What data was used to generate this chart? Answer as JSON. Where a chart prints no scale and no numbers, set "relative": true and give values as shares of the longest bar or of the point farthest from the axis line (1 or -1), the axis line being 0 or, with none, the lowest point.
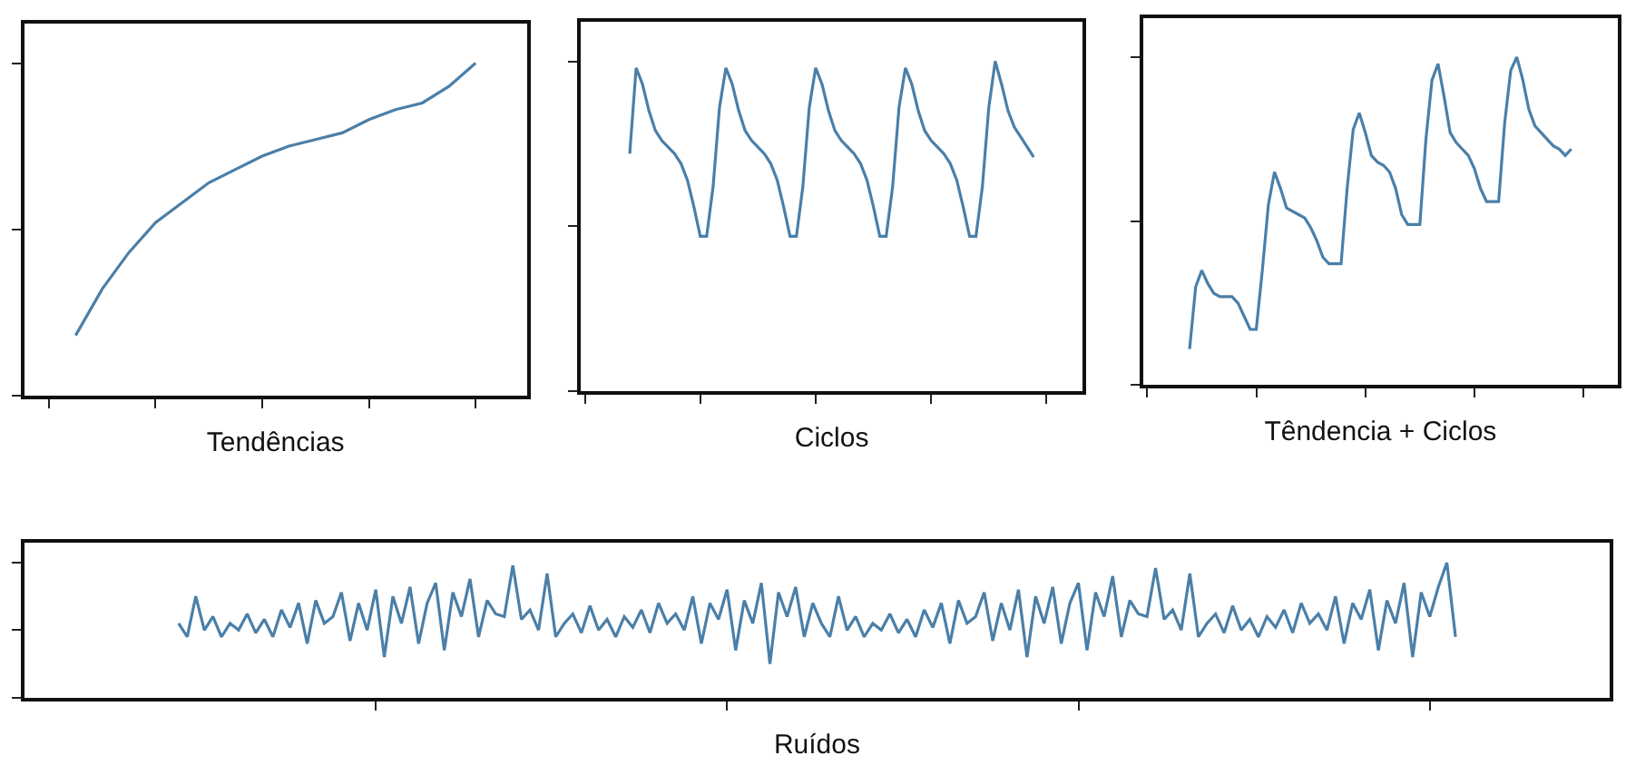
{
  "chart_data": [
    {
      "type": "line",
      "xlabel": "Tendências",
      "relative": true,
      "tick_labels": false,
      "categories": [
        null,
        null,
        null,
        null,
        null,
        null,
        null,
        null,
        null,
        null,
        null,
        null,
        null,
        null,
        null,
        null
      ],
      "series": [
        {
          "color": "#4a7fa8",
          "values": [
            0.18,
            0.32,
            0.43,
            0.52,
            0.58,
            0.64,
            0.68,
            0.72,
            0.75,
            0.77,
            0.79,
            0.83,
            0.86,
            0.88,
            0.93,
            1.0
          ]
        }
      ]
    },
    {
      "type": "line",
      "xlabel": "Ciclos",
      "relative": true,
      "tick_labels": false,
      "categories": [
        null,
        null,
        null,
        null,
        null,
        null,
        null,
        null,
        null,
        null,
        null,
        null,
        null,
        null,
        null,
        null,
        null,
        null,
        null,
        null,
        null,
        null,
        null,
        null,
        null,
        null,
        null,
        null,
        null,
        null,
        null,
        null,
        null,
        null,
        null,
        null,
        null,
        null,
        null,
        null,
        null,
        null,
        null,
        null,
        null,
        null,
        null,
        null,
        null,
        null,
        null,
        null,
        null,
        null,
        null,
        null,
        null,
        null,
        null,
        null,
        null,
        null,
        null,
        null
      ],
      "series": [
        {
          "color": "#4a7fa8",
          "values": [
            0.72,
            0.98,
            0.93,
            0.85,
            0.79,
            0.76,
            0.74,
            0.72,
            0.69,
            0.64,
            0.56,
            0.47,
            0.47,
            0.62,
            0.86,
            0.98,
            0.93,
            0.85,
            0.79,
            0.76,
            0.74,
            0.72,
            0.69,
            0.64,
            0.56,
            0.47,
            0.47,
            0.62,
            0.86,
            0.98,
            0.93,
            0.85,
            0.79,
            0.76,
            0.74,
            0.72,
            0.69,
            0.64,
            0.56,
            0.47,
            0.47,
            0.62,
            0.86,
            0.98,
            0.93,
            0.85,
            0.79,
            0.76,
            0.74,
            0.72,
            0.69,
            0.64,
            0.56,
            0.47,
            0.47,
            0.62,
            0.86,
            1.0,
            0.93,
            0.85,
            0.8,
            0.77,
            0.74,
            0.71
          ]
        }
      ]
    },
    {
      "type": "line",
      "xlabel": "Têndencia + Ciclos",
      "relative": true,
      "tick_labels": false,
      "categories": [
        null,
        null,
        null,
        null,
        null,
        null,
        null,
        null,
        null,
        null,
        null,
        null,
        null,
        null,
        null,
        null,
        null,
        null,
        null,
        null,
        null,
        null,
        null,
        null,
        null,
        null,
        null,
        null,
        null,
        null,
        null,
        null,
        null,
        null,
        null,
        null,
        null,
        null,
        null,
        null,
        null,
        null,
        null,
        null,
        null,
        null,
        null,
        null,
        null,
        null,
        null,
        null,
        null,
        null,
        null,
        null,
        null,
        null,
        null,
        null,
        null,
        null,
        null,
        null
      ],
      "series": [
        {
          "color": "#4a7fa8",
          "values": [
            0.11,
            0.3,
            0.35,
            0.31,
            0.28,
            0.27,
            0.27,
            0.27,
            0.25,
            0.21,
            0.17,
            0.17,
            0.35,
            0.55,
            0.65,
            0.6,
            0.54,
            0.53,
            0.52,
            0.51,
            0.48,
            0.44,
            0.39,
            0.37,
            0.37,
            0.37,
            0.6,
            0.78,
            0.83,
            0.77,
            0.7,
            0.68,
            0.67,
            0.65,
            0.6,
            0.52,
            0.49,
            0.49,
            0.49,
            0.75,
            0.93,
            0.98,
            0.88,
            0.77,
            0.74,
            0.72,
            0.7,
            0.66,
            0.6,
            0.56,
            0.56,
            0.56,
            0.8,
            0.96,
            1.0,
            0.93,
            0.84,
            0.79,
            0.77,
            0.75,
            0.73,
            0.72,
            0.7,
            0.72
          ]
        }
      ]
    },
    {
      "type": "line",
      "xlabel": "Ruídos",
      "relative": true,
      "tick_labels": false,
      "categories": [
        null,
        null,
        null,
        null,
        null,
        null,
        null,
        null,
        null,
        null,
        null,
        null,
        null,
        null,
        null,
        null,
        null,
        null,
        null,
        null,
        null,
        null,
        null,
        null,
        null,
        null,
        null,
        null,
        null,
        null,
        null,
        null,
        null,
        null,
        null,
        null,
        null,
        null,
        null,
        null,
        null,
        null,
        null,
        null,
        null,
        null,
        null,
        null,
        null,
        null,
        null,
        null,
        null,
        null,
        null,
        null,
        null,
        null,
        null,
        null,
        null,
        null,
        null,
        null,
        null,
        null,
        null,
        null,
        null,
        null,
        null,
        null,
        null,
        null,
        null,
        null,
        null,
        null,
        null,
        null,
        null,
        null,
        null,
        null,
        null,
        null,
        null,
        null,
        null,
        null,
        null,
        null,
        null,
        null,
        null,
        null,
        null,
        null,
        null,
        null,
        null,
        null,
        null,
        null,
        null,
        null,
        null,
        null,
        null,
        null,
        null,
        null,
        null,
        null,
        null,
        null,
        null,
        null,
        null,
        null,
        null,
        null,
        null,
        null,
        null,
        null,
        null,
        null,
        null,
        null,
        null,
        null,
        null,
        null,
        null,
        null,
        null,
        null,
        null,
        null,
        null,
        null,
        null,
        null,
        null,
        null,
        null,
        null,
        null,
        null
      ],
      "series": [
        {
          "color": "#4a7fa8",
          "values": [
            0.55,
            0.45,
            0.75,
            0.5,
            0.6,
            0.45,
            0.55,
            0.5,
            0.62,
            0.48,
            0.58,
            0.45,
            0.65,
            0.52,
            0.7,
            0.4,
            0.72,
            0.55,
            0.6,
            0.78,
            0.42,
            0.7,
            0.5,
            0.8,
            0.3,
            0.75,
            0.55,
            0.82,
            0.4,
            0.7,
            0.85,
            0.35,
            0.78,
            0.6,
            0.88,
            0.45,
            0.72,
            0.62,
            0.6,
            0.98,
            0.58,
            0.65,
            0.5,
            0.92,
            0.45,
            0.55,
            0.62,
            0.48,
            0.68,
            0.5,
            0.58,
            0.45,
            0.6,
            0.52,
            0.65,
            0.48,
            0.7,
            0.55,
            0.62,
            0.5,
            0.75,
            0.4,
            0.7,
            0.58,
            0.8,
            0.35,
            0.72,
            0.55,
            0.85,
            0.25,
            0.78,
            0.6,
            0.82,
            0.45,
            0.7,
            0.55,
            0.45,
            0.75,
            0.5,
            0.6,
            0.45,
            0.55,
            0.5,
            0.62,
            0.48,
            0.58,
            0.45,
            0.65,
            0.52,
            0.7,
            0.4,
            0.72,
            0.55,
            0.6,
            0.78,
            0.42,
            0.7,
            0.5,
            0.8,
            0.3,
            0.75,
            0.55,
            0.82,
            0.4,
            0.7,
            0.85,
            0.35,
            0.78,
            0.6,
            0.9,
            0.45,
            0.72,
            0.62,
            0.6,
            0.96,
            0.58,
            0.65,
            0.5,
            0.92,
            0.45,
            0.55,
            0.62,
            0.48,
            0.68,
            0.5,
            0.58,
            0.45,
            0.6,
            0.52,
            0.65,
            0.48,
            0.7,
            0.55,
            0.62,
            0.5,
            0.75,
            0.4,
            0.7,
            0.58,
            0.8,
            0.35,
            0.72,
            0.55,
            0.85,
            0.3,
            0.78,
            0.6,
            0.82,
            1.0,
            0.45
          ]
        }
      ]
    }
  ]
}
